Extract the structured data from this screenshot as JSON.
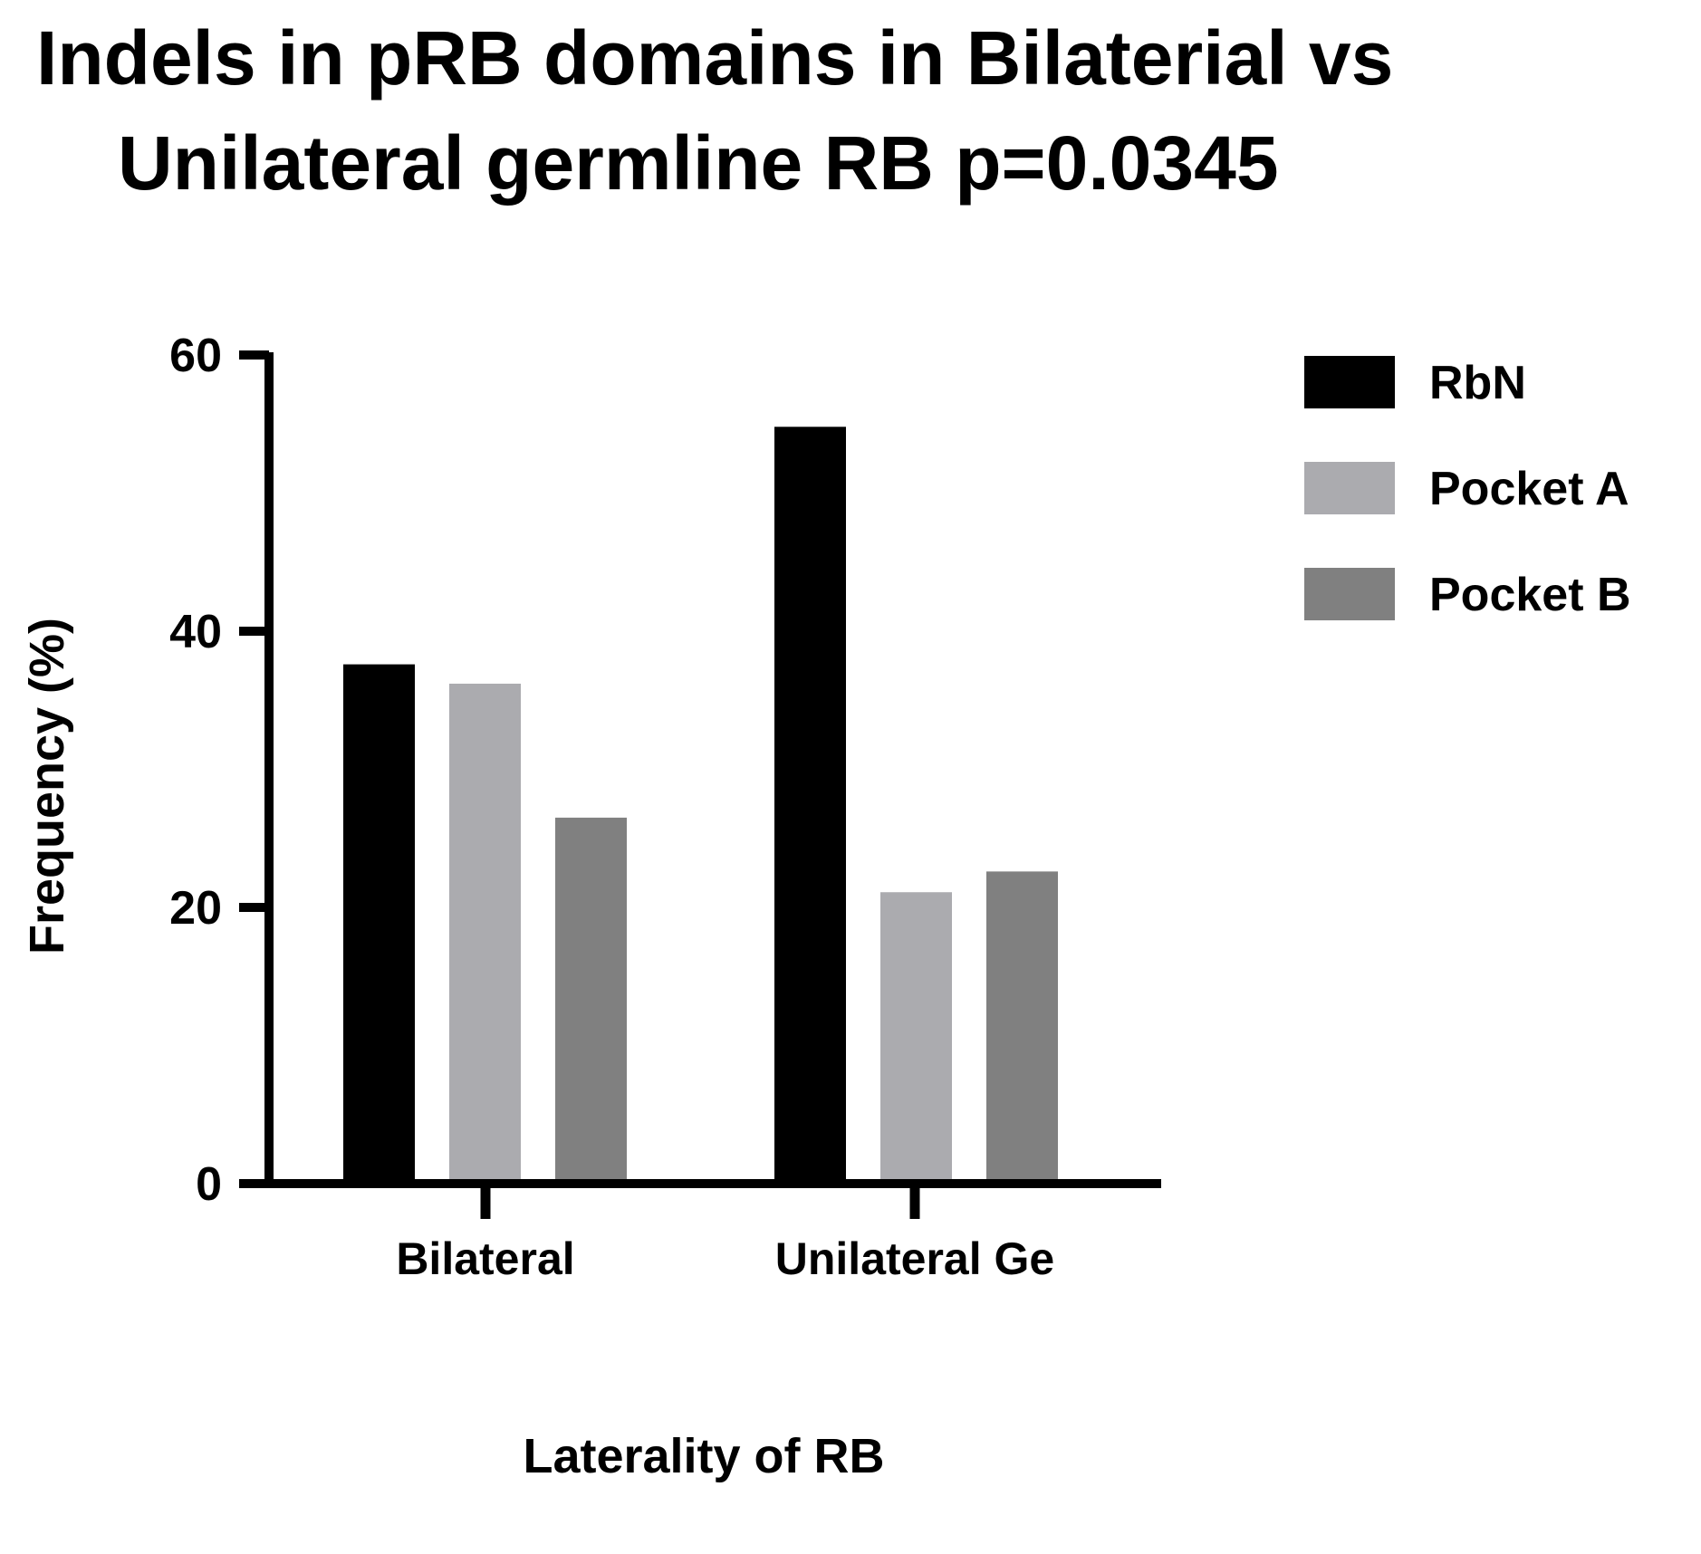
{
  "chart_data": {
    "type": "bar",
    "title_lines": [
      "Indels in pRB domains in Bilaterial vs",
      "Unilateral germline RB p=0.0345"
    ],
    "xlabel": "Laterality of RB",
    "ylabel": "Frequency (%)",
    "categories": [
      "Bilateral",
      "Unilateral Ge"
    ],
    "ylim": [
      0,
      60
    ],
    "yticks": [
      "0",
      "20",
      "40",
      "60"
    ],
    "legend_position": "right",
    "grid": false,
    "series": [
      {
        "name": "RbN",
        "color": "#000000",
        "values": [
          37.6,
          54.8
        ]
      },
      {
        "name": "Pocket A",
        "color": "#ababaf",
        "values": [
          36.2,
          21.1
        ]
      },
      {
        "name": "Pocket B",
        "color": "#808080",
        "values": [
          26.5,
          22.6
        ]
      }
    ]
  }
}
